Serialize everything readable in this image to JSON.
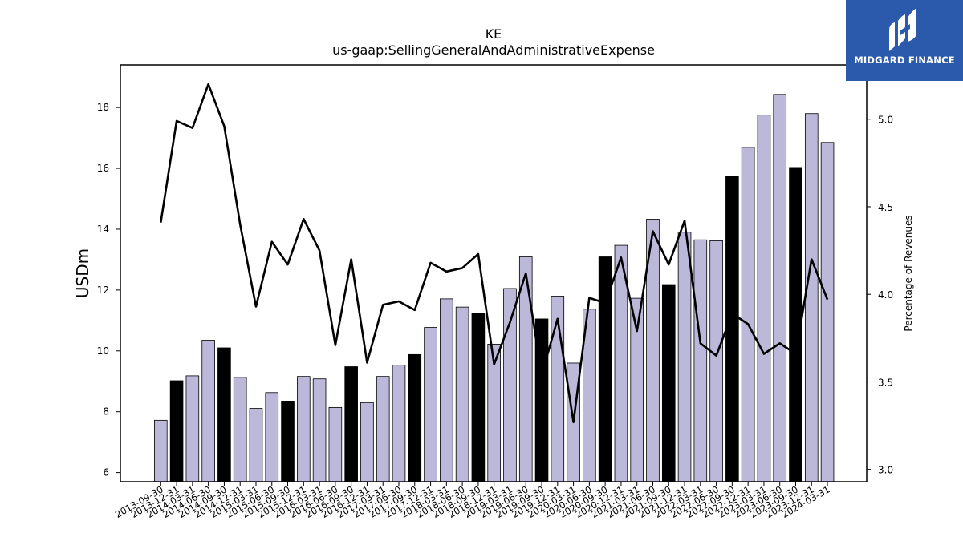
{
  "logo": {
    "text": "MIDGARD FINANCE",
    "bg_color": "#2b5aad"
  },
  "chart_data": {
    "type": "bar",
    "title": "KE",
    "subtitle": "us-gaap:SellingGeneralAndAdministrativeExpense",
    "ylabel": "USDm",
    "y2label": "Percentage of Revenues",
    "ylim": [
      5.7,
      19.4
    ],
    "y2lim": [
      2.93,
      5.31
    ],
    "yticks": [
      6,
      8,
      10,
      12,
      14,
      16,
      18
    ],
    "y2ticks": [
      "3.0",
      "3.5",
      "4.0",
      "4.5",
      "5.0"
    ],
    "bar_color": "#bcb8d9",
    "highlight_color": "#000000",
    "categories": [
      "2013-09-30",
      "2013-12-31",
      "2014-03-31",
      "2014-06-30",
      "2014-09-30",
      "2014-12-31",
      "2015-03-31",
      "2015-06-30",
      "2015-09-30",
      "2015-12-31",
      "2016-03-31",
      "2016-06-30",
      "2016-09-30",
      "2016-12-31",
      "2017-03-31",
      "2017-06-30",
      "2017-09-30",
      "2017-12-31",
      "2018-03-31",
      "2018-06-30",
      "2018-09-30",
      "2018-12-31",
      "2019-03-31",
      "2019-06-30",
      "2019-09-30",
      "2019-12-31",
      "2020-03-31",
      "2020-06-30",
      "2020-09-30",
      "2020-12-31",
      "2021-03-31",
      "2021-06-30",
      "2021-09-30",
      "2021-12-31",
      "2022-03-31",
      "2022-06-30",
      "2022-09-30",
      "2022-12-31",
      "2023-03-31",
      "2023-06-30",
      "2023-09-30",
      "2023-12-31",
      "2024-03-31"
    ],
    "series": [
      {
        "type": "bar",
        "values": [
          7.72,
          9.02,
          9.18,
          10.35,
          10.1,
          9.13,
          8.11,
          8.63,
          8.35,
          9.16,
          9.08,
          8.14,
          9.48,
          8.3,
          9.16,
          9.53,
          9.88,
          10.77,
          11.71,
          11.44,
          11.23,
          10.22,
          12.05,
          13.09,
          11.05,
          11.8,
          9.6,
          11.37,
          13.09,
          13.47,
          11.73,
          14.33,
          12.18,
          13.9,
          13.65,
          13.62,
          15.73,
          16.69,
          17.75,
          18.43,
          16.03,
          17.8,
          16.85
        ],
        "highlight": [
          false,
          true,
          false,
          false,
          true,
          false,
          false,
          false,
          true,
          false,
          false,
          false,
          true,
          false,
          false,
          false,
          true,
          false,
          false,
          false,
          true,
          false,
          false,
          false,
          true,
          false,
          false,
          false,
          true,
          false,
          false,
          false,
          true,
          false,
          false,
          false,
          true,
          false,
          false,
          false,
          true,
          false,
          false
        ]
      },
      {
        "type": "line",
        "axis": "right",
        "color": "#000000",
        "values": [
          4.41,
          4.99,
          4.95,
          5.2,
          4.96,
          4.4,
          3.93,
          4.3,
          4.17,
          4.43,
          4.25,
          3.71,
          4.2,
          3.61,
          3.94,
          3.96,
          3.91,
          4.18,
          4.13,
          4.15,
          4.23,
          3.6,
          3.84,
          4.12,
          3.54,
          3.86,
          3.27,
          3.98,
          3.95,
          4.21,
          3.79,
          4.36,
          4.17,
          4.42,
          3.72,
          3.65,
          3.89,
          3.83,
          3.66,
          3.72,
          3.66,
          4.2,
          3.97
        ]
      }
    ]
  }
}
